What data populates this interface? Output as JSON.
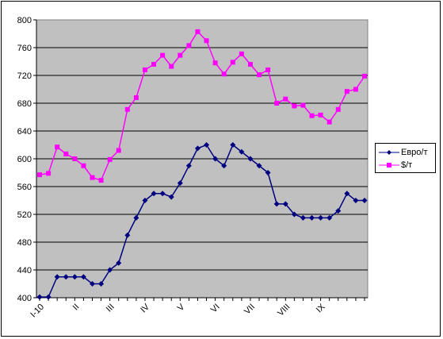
{
  "chart_data": {
    "type": "line",
    "title": "",
    "xlabel": "",
    "ylabel": "",
    "ylim": [
      400,
      800
    ],
    "y_ticks": [
      400,
      440,
      480,
      520,
      560,
      600,
      640,
      680,
      720,
      760,
      800
    ],
    "grid": "horizontal",
    "legend_position": "right",
    "plot_background": "#C0C0C0",
    "x_labels": [
      {
        "label": "I-10",
        "index": 0
      },
      {
        "label": "II",
        "index": 4
      },
      {
        "label": "III",
        "index": 8
      },
      {
        "label": "IV",
        "index": 12
      },
      {
        "label": "V",
        "index": 16
      },
      {
        "label": "VI",
        "index": 20
      },
      {
        "label": "VII",
        "index": 24
      },
      {
        "label": "VIII",
        "index": 28
      },
      {
        "label": "IX",
        "index": 32
      }
    ],
    "point_count": 38,
    "series": [
      {
        "name": "Евро/т",
        "color": "#000080",
        "marker": "diamond",
        "values": [
          401,
          401,
          430,
          430,
          430,
          430,
          420,
          420,
          440,
          450,
          490,
          515,
          540,
          550,
          550,
          545,
          565,
          590,
          615,
          620,
          600,
          590,
          620,
          610,
          600,
          590,
          580,
          535,
          535,
          520,
          515,
          515,
          515,
          515,
          525,
          550,
          540,
          540
        ]
      },
      {
        "name": "$/т",
        "color": "#FF00FF",
        "marker": "square",
        "values": [
          577,
          579,
          617,
          607,
          600,
          590,
          573,
          569,
          599,
          612,
          671,
          688,
          728,
          736,
          749,
          733,
          749,
          763,
          783,
          770,
          738,
          722,
          739,
          751,
          736,
          721,
          728,
          680,
          686,
          676,
          677,
          662,
          663,
          653,
          671,
          697,
          700,
          719
        ]
      }
    ]
  }
}
